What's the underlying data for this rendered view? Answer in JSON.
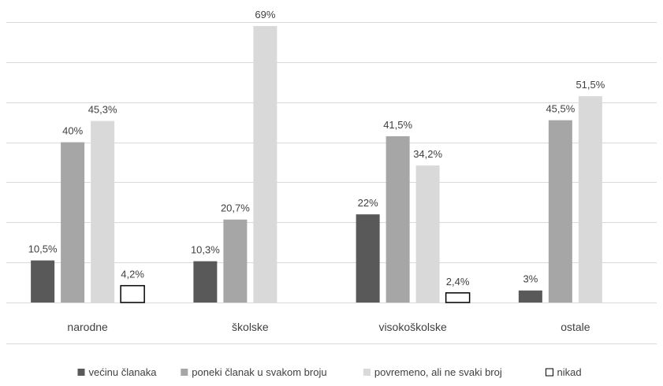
{
  "chart_data": {
    "type": "bar",
    "title": "",
    "xlabel": "",
    "ylabel": "",
    "ylim": [
      0,
      70
    ],
    "grid": true,
    "legend_position": "bottom",
    "categories": [
      "narodne",
      "školske",
      "visokoškolske",
      "ostale"
    ],
    "series": [
      {
        "name": "većinu članaka",
        "color": "#595959",
        "outline": false,
        "values": [
          10.5,
          10.3,
          22,
          3
        ],
        "labels": [
          "10,5%",
          "10,3%",
          "22%",
          "3%"
        ]
      },
      {
        "name": "poneki članak u svakom broju",
        "color": "#a6a6a6",
        "outline": false,
        "values": [
          40,
          20.7,
          41.5,
          45.5
        ],
        "labels": [
          "40%",
          "20,7%",
          "41,5%",
          "45,5%"
        ]
      },
      {
        "name": "povremeno, ali ne svaki broj",
        "color": "#d9d9d9",
        "outline": false,
        "values": [
          45.3,
          69,
          34.2,
          51.5
        ],
        "labels": [
          "45,3%",
          "69%",
          "34,2%",
          "51,5%"
        ]
      },
      {
        "name": "nikad",
        "color": "#ffffff",
        "outline": true,
        "values": [
          4.2,
          null,
          2.4,
          null
        ],
        "labels": [
          "4,2%",
          "",
          "2,4%",
          ""
        ]
      }
    ]
  }
}
